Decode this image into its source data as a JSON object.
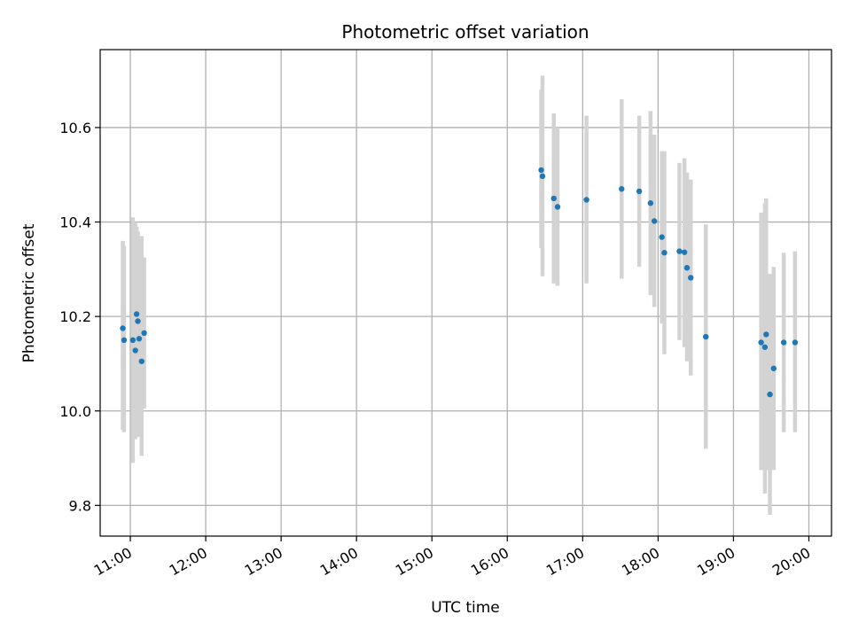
{
  "chart_data": {
    "type": "scatter",
    "title": "Photometric offset variation",
    "xlabel": "UTC time",
    "ylabel": "Photometric offset",
    "x_ticks": [
      "11:00",
      "12:00",
      "13:00",
      "14:00",
      "15:00",
      "16:00",
      "17:00",
      "18:00",
      "19:00",
      "20:00"
    ],
    "y_ticks": [
      "9.8",
      "10.0",
      "10.2",
      "10.4",
      "10.6"
    ],
    "xlim": [
      "10:36",
      "20:18"
    ],
    "ylim": [
      9.735,
      10.765
    ],
    "grid": true,
    "colors": {
      "point": "#1f77b4",
      "errorbar": "#d3d3d3",
      "grid": "#b0b0b0"
    },
    "series": [
      {
        "points": [
          {
            "x": "10:54",
            "y": 10.175,
            "lo": 9.96,
            "hi": 10.36
          },
          {
            "x": "10:55",
            "y": 10.15,
            "lo": 9.955,
            "hi": 10.35
          },
          {
            "x": "11:02",
            "y": 10.15,
            "lo": 9.89,
            "hi": 10.41
          },
          {
            "x": "11:04",
            "y": 10.128,
            "lo": 9.94,
            "hi": 10.4
          },
          {
            "x": "11:05",
            "y": 10.205,
            "lo": 10.02,
            "hi": 10.39
          },
          {
            "x": "11:06",
            "y": 10.19,
            "lo": 10.0,
            "hi": 10.38
          },
          {
            "x": "11:07",
            "y": 10.153,
            "lo": 9.945,
            "hi": 10.36
          },
          {
            "x": "11:09",
            "y": 10.105,
            "lo": 9.905,
            "hi": 10.37
          },
          {
            "x": "11:11",
            "y": 10.165,
            "lo": 10.005,
            "hi": 10.325
          },
          {
            "x": "16:27",
            "y": 10.51,
            "lo": 10.345,
            "hi": 10.68
          },
          {
            "x": "16:28",
            "y": 10.497,
            "lo": 10.285,
            "hi": 10.71
          },
          {
            "x": "16:37",
            "y": 10.45,
            "lo": 10.27,
            "hi": 10.63
          },
          {
            "x": "16:40",
            "y": 10.432,
            "lo": 10.265,
            "hi": 10.6
          },
          {
            "x": "17:03",
            "y": 10.447,
            "lo": 10.27,
            "hi": 10.625
          },
          {
            "x": "17:31",
            "y": 10.47,
            "lo": 10.28,
            "hi": 10.66
          },
          {
            "x": "17:45",
            "y": 10.465,
            "lo": 10.305,
            "hi": 10.625
          },
          {
            "x": "17:54",
            "y": 10.44,
            "lo": 10.245,
            "hi": 10.635
          },
          {
            "x": "17:57",
            "y": 10.402,
            "lo": 10.22,
            "hi": 10.585
          },
          {
            "x": "18:03",
            "y": 10.368,
            "lo": 10.185,
            "hi": 10.55
          },
          {
            "x": "18:05",
            "y": 10.335,
            "lo": 10.12,
            "hi": 10.55
          },
          {
            "x": "18:17",
            "y": 10.338,
            "lo": 10.15,
            "hi": 10.525
          },
          {
            "x": "18:21",
            "y": 10.336,
            "lo": 10.135,
            "hi": 10.535
          },
          {
            "x": "18:23",
            "y": 10.303,
            "lo": 10.105,
            "hi": 10.505
          },
          {
            "x": "18:26",
            "y": 10.282,
            "lo": 10.075,
            "hi": 10.49
          },
          {
            "x": "18:38",
            "y": 10.157,
            "lo": 9.92,
            "hi": 10.395
          },
          {
            "x": "19:22",
            "y": 10.145,
            "lo": 9.875,
            "hi": 10.42
          },
          {
            "x": "19:25",
            "y": 10.135,
            "lo": 9.825,
            "hi": 10.44
          },
          {
            "x": "19:26",
            "y": 10.162,
            "lo": 9.875,
            "hi": 10.45
          },
          {
            "x": "19:29",
            "y": 10.035,
            "lo": 9.78,
            "hi": 10.29
          },
          {
            "x": "19:32",
            "y": 10.09,
            "lo": 9.875,
            "hi": 10.305
          },
          {
            "x": "19:40",
            "y": 10.145,
            "lo": 9.955,
            "hi": 10.335
          },
          {
            "x": "19:49",
            "y": 10.145,
            "lo": 9.955,
            "hi": 10.338
          }
        ]
      }
    ]
  }
}
